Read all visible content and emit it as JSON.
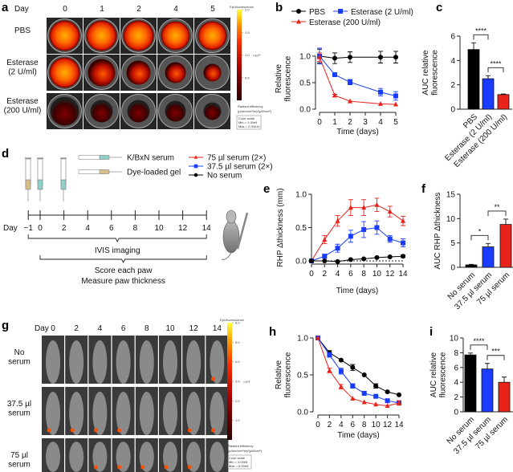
{
  "panels": {
    "a": {
      "label": "a",
      "day_label": "Day",
      "days": [
        "0",
        "1",
        "2",
        "4",
        "5"
      ],
      "rows": [
        "PBS",
        "Esterase\n(2 U/ml)",
        "Esterase\n(200 U/ml)"
      ],
      "colorbar": {
        "title": "Epi-fluorescence",
        "ticks": [
          "0.5",
          "1.0",
          "1.5",
          "2.0"
        ],
        "exponent": "×10¹⁰",
        "unit1": "Radiant efficiency",
        "unit2": "(p/sec/cm²/sr)/(µW/cm²)",
        "scale_title": "Color scale",
        "min": "Min = 1.00e9",
        "max": "Max = 2.00e10"
      }
    },
    "d": {
      "label": "d",
      "legend_syringes": [
        "K/BxN serum",
        "Dye-loaded gel"
      ],
      "day_label": "Day",
      "timeline_ticks": [
        "−1",
        "0",
        "2",
        "4",
        "6",
        "8",
        "10",
        "12",
        "14"
      ],
      "bracket1": "IVIS imaging",
      "bracket2_line1": "Score each paw",
      "bracket2_line2": "Measure paw thickness",
      "legend": [
        "75 µl serum (2×)",
        "37.5 µl serum (2×)",
        "No serum"
      ]
    },
    "g": {
      "label": "g",
      "day_label": "Day",
      "days": [
        "0",
        "2",
        "4",
        "6",
        "8",
        "10",
        "12",
        "14"
      ],
      "rows": [
        "No\nserum",
        "37.5 µl\nserum",
        "75 µl\nserum"
      ],
      "colorbar": {
        "title": "Epi-fluorescence",
        "ticks": [
          "1.0",
          "2.0",
          "3.0",
          "4.0",
          "5.0",
          "6.0"
        ],
        "exponent": "×10⁸",
        "unit1": "Radiant efficiency",
        "unit2": "(p/sec/cm²/sr)/(µW/cm²)",
        "scale_title": "Color scale",
        "min": "Min = 3.00e8",
        "max": "Max = 6.00e8"
      }
    }
  },
  "colors": {
    "black": "#000000",
    "blue": "#1a3cff",
    "red": "#e8231a"
  },
  "chart_data": [
    {
      "id": "b",
      "label": "b",
      "type": "line",
      "xlabel": "Time (days)",
      "ylabel": "Relative\nfluorescence",
      "x": [
        0,
        1,
        2,
        4,
        5
      ],
      "xticks": [
        0,
        1,
        2,
        3,
        4,
        5
      ],
      "yticks": [
        "0.0",
        "0.5",
        "1.0"
      ],
      "ylim": [
        0,
        1.15
      ],
      "legend_placement": "top",
      "series": [
        {
          "name": "PBS",
          "color": "#000000",
          "marker": "circle",
          "values": [
            1.0,
            0.96,
            0.98,
            0.98,
            0.98
          ],
          "errors": [
            0.13,
            0.1,
            0.1,
            0.11,
            0.11
          ]
        },
        {
          "name": "Esterase (2 U/ml)",
          "color": "#1a3cff",
          "marker": "square",
          "values": [
            1.0,
            0.65,
            0.51,
            0.32,
            0.25
          ],
          "errors": [
            0.15,
            0.03,
            0.05,
            0.07,
            0.08
          ]
        },
        {
          "name": "Esterase (200 U/ml)",
          "color": "#e8231a",
          "marker": "triangle",
          "values": [
            0.98,
            0.26,
            0.15,
            0.1,
            0.09
          ],
          "errors": [
            0.08,
            0.02,
            0.01,
            0.01,
            0.01
          ]
        }
      ]
    },
    {
      "id": "c",
      "label": "c",
      "type": "bar",
      "ylabel": "AUC relative\nfluorescence",
      "categories": [
        "PBS",
        "Esterase (2 U/ml)",
        "Esterase (200 U/ml)"
      ],
      "values": [
        4.9,
        2.5,
        1.2
      ],
      "errors": [
        0.55,
        0.25,
        0.05
      ],
      "colors": [
        "#000000",
        "#1a3cff",
        "#e8231a"
      ],
      "yticks": [
        "0",
        "2",
        "4",
        "6"
      ],
      "ylim": [
        0,
        6
      ],
      "significance": [
        {
          "pair": [
            0,
            1
          ],
          "text": "****"
        },
        {
          "pair": [
            1,
            2
          ],
          "text": "****"
        }
      ]
    },
    {
      "id": "e",
      "label": "e",
      "type": "line",
      "xlabel": "Time (days)",
      "ylabel": "RHP Δthickness (mm)",
      "x": [
        0,
        2,
        4,
        6,
        8,
        10,
        12,
        14
      ],
      "xticks": [
        0,
        2,
        4,
        6,
        8,
        10,
        12,
        14
      ],
      "yticks": [
        "0.0",
        "0.5",
        "1.0"
      ],
      "ylim": [
        0,
        1.0
      ],
      "series": [
        {
          "name": "75 µl serum (2×)",
          "color": "#e8231a",
          "marker": "triangle",
          "values": [
            0,
            0.32,
            0.6,
            0.8,
            0.8,
            0.84,
            0.74,
            0.6
          ],
          "errors": [
            0,
            0.06,
            0.08,
            0.12,
            0.12,
            0.1,
            0.08,
            0.07
          ]
        },
        {
          "name": "37.5 µl serum (2×)",
          "color": "#1a3cff",
          "marker": "square",
          "values": [
            0,
            0.07,
            0.19,
            0.37,
            0.47,
            0.5,
            0.33,
            0.27
          ],
          "errors": [
            0,
            0.03,
            0.06,
            0.09,
            0.12,
            0.1,
            0.05,
            0.06
          ]
        },
        {
          "name": "No serum",
          "color": "#000000",
          "marker": "circle",
          "values": [
            0,
            0,
            -0.01,
            0.02,
            0.03,
            0.05,
            0.06,
            0.07
          ],
          "errors": [
            0,
            0.01,
            0.01,
            0.01,
            0.01,
            0.01,
            0.01,
            0.02
          ]
        }
      ]
    },
    {
      "id": "f",
      "label": "f",
      "type": "bar",
      "ylabel": "AUC RHP Δthickness",
      "categories": [
        "No serum",
        "37.5 µl serum",
        "75 µl serum"
      ],
      "values": [
        0.5,
        4.2,
        8.8
      ],
      "errors": [
        0.1,
        0.7,
        1.1
      ],
      "colors": [
        "#000000",
        "#1a3cff",
        "#e8231a"
      ],
      "yticks": [
        "0",
        "5",
        "10",
        "15"
      ],
      "ylim": [
        0,
        15
      ],
      "significance": [
        {
          "pair": [
            0,
            1
          ],
          "text": "*"
        },
        {
          "pair": [
            1,
            2
          ],
          "text": "**"
        }
      ]
    },
    {
      "id": "h",
      "label": "h",
      "type": "line",
      "xlabel": "Time (days)",
      "ylabel": "Relative\nfluorescence",
      "x": [
        0,
        2,
        4,
        6,
        8,
        10,
        12,
        14
      ],
      "xticks": [
        0,
        2,
        4,
        6,
        8,
        10,
        12,
        14
      ],
      "yticks": [
        "0.0",
        "0.5",
        "1.0"
      ],
      "ylim": [
        0,
        1.0
      ],
      "series": [
        {
          "name": "No serum",
          "color": "#000000",
          "marker": "circle",
          "values": [
            1.0,
            0.8,
            0.7,
            0.6,
            0.5,
            0.35,
            0.27,
            0.23
          ],
          "errors": [
            0,
            0.03,
            0.01,
            0.04,
            0.01,
            0.03,
            0.01,
            0.01
          ]
        },
        {
          "name": "37.5 µl serum",
          "color": "#1a3cff",
          "marker": "square",
          "values": [
            1.0,
            0.77,
            0.55,
            0.35,
            0.25,
            0.21,
            0.15,
            0.12
          ],
          "errors": [
            0,
            0.03,
            0.04,
            0.03,
            0.01,
            0.01,
            0.01,
            0.03
          ]
        },
        {
          "name": "75 µl serum",
          "color": "#e8231a",
          "marker": "triangle",
          "values": [
            1.0,
            0.56,
            0.34,
            0.18,
            0.13,
            0.1,
            0.08,
            0.12
          ],
          "errors": [
            0,
            0.03,
            0.03,
            0.01,
            0.01,
            0.01,
            0.01,
            0.03
          ]
        }
      ]
    },
    {
      "id": "i",
      "label": "i",
      "type": "bar",
      "ylabel": "AUC relative\nfluorescence",
      "categories": [
        "No serum",
        "37.5 µl serum",
        "75 µl serum"
      ],
      "values": [
        7.7,
        5.8,
        4.0
      ],
      "errors": [
        0.25,
        0.75,
        0.7
      ],
      "colors": [
        "#000000",
        "#1a3cff",
        "#e8231a"
      ],
      "yticks": [
        "0",
        "2",
        "4",
        "6",
        "8",
        "10"
      ],
      "ylim": [
        0,
        10
      ],
      "significance": [
        {
          "pair": [
            0,
            1
          ],
          "text": "****"
        },
        {
          "pair": [
            1,
            2
          ],
          "text": "***"
        }
      ]
    }
  ]
}
